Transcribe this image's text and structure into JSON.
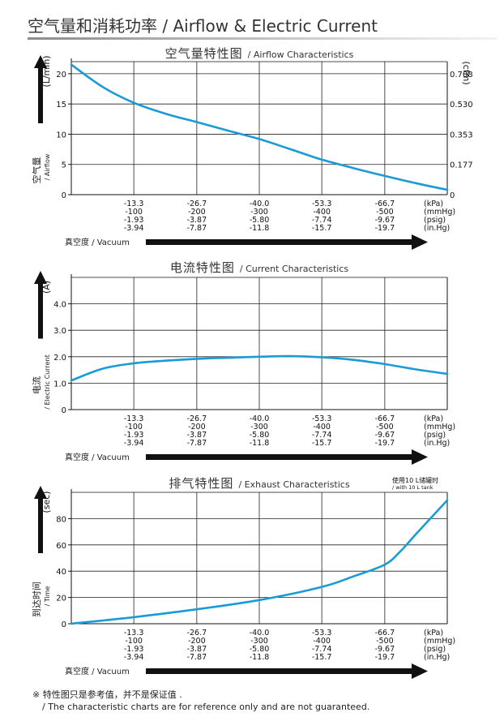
{
  "page": {
    "title": "空气量和消耗功率 / Airflow & Electric Current"
  },
  "notes": [
    "※ 特性图只是参考值，并不是保证值 .",
    "/ The characteristic charts are for reference only and are not guaranteed."
  ],
  "colors": {
    "curve": "#1a9ad7",
    "axis": "#111111",
    "arrow": "#111111"
  },
  "chart_data": [
    {
      "type": "line",
      "title": "空气量特性图",
      "subtitle": "/ Airflow Characteristics",
      "ylabel": "(L/min)",
      "y2label": "(cfm)",
      "side_label_cn": "空气量",
      "side_label_en": "/ Airflow",
      "xlabel_arrow": "真空度 / Vacuum",
      "xlim": [
        0,
        -80
      ],
      "ylim": [
        0,
        22
      ],
      "yticks": [
        0,
        5,
        10,
        15,
        20
      ],
      "y2ticks": [
        {
          "value": 0,
          "label": "0"
        },
        {
          "value": 5,
          "label": "0.177"
        },
        {
          "value": 10,
          "label": "0.353"
        },
        {
          "value": 15,
          "label": "0.530"
        },
        {
          "value": 20,
          "label": "0.708"
        }
      ],
      "x_ticks": [
        {
          "value": -13.3,
          "labels": [
            "-13.3",
            "-100",
            "-1.93",
            "-3.94"
          ]
        },
        {
          "value": -26.7,
          "labels": [
            "-26.7",
            "-200",
            "-3.87",
            "-7.87"
          ]
        },
        {
          "value": -40.0,
          "labels": [
            "-40.0",
            "-300",
            "-5.80",
            "-11.8"
          ]
        },
        {
          "value": -53.3,
          "labels": [
            "-53.3",
            "-400",
            "-7.74",
            "-15.7"
          ]
        },
        {
          "value": -66.7,
          "labels": [
            "-66.7",
            "-500",
            "-9.67",
            "-19.7"
          ]
        }
      ],
      "x_units": [
        "(kPa)",
        "(mmHg)",
        "(psig)",
        "(in.Hg)"
      ],
      "grid": true,
      "series": [
        {
          "x": [
            0,
            -6.7,
            -13.3,
            -20,
            -26.7,
            -33.3,
            -40,
            -46.7,
            -53.3,
            -60,
            -66.7,
            -73.3,
            -80
          ],
          "y": [
            21.5,
            17.8,
            15.2,
            13.4,
            12.0,
            10.6,
            9.2,
            7.5,
            5.8,
            4.4,
            3.1,
            1.9,
            0.8
          ]
        }
      ]
    },
    {
      "type": "line",
      "title": "电流特性图",
      "subtitle": "/ Current Characteristics",
      "ylabel": "(A)",
      "side_label_cn": "电流",
      "side_label_en": "/ Electric Current",
      "xlabel_arrow": "真空度 / Vacuum",
      "xlim": [
        0,
        -80
      ],
      "ylim": [
        0,
        5
      ],
      "yticks": [
        {
          "value": 0,
          "label": "0"
        },
        {
          "value": 1,
          "label": "1.0"
        },
        {
          "value": 2,
          "label": "2.0"
        },
        {
          "value": 3,
          "label": "3.0"
        },
        {
          "value": 4,
          "label": "4.0"
        }
      ],
      "x_ticks": [
        {
          "value": -13.3,
          "labels": [
            "-13.3",
            "-100",
            "-1.93",
            "-3.94"
          ]
        },
        {
          "value": -26.7,
          "labels": [
            "-26.7",
            "-200",
            "-3.87",
            "-7.87"
          ]
        },
        {
          "value": -40.0,
          "labels": [
            "-40.0",
            "-300",
            "-5.80",
            "-11.8"
          ]
        },
        {
          "value": -53.3,
          "labels": [
            "-53.3",
            "-400",
            "-7.74",
            "-15.7"
          ]
        },
        {
          "value": -66.7,
          "labels": [
            "-66.7",
            "-500",
            "-9.67",
            "-19.7"
          ]
        }
      ],
      "x_units": [
        "(kPa)",
        "(mmHg)",
        "(psig)",
        "(in.Hg)"
      ],
      "grid": true,
      "series": [
        {
          "x": [
            0,
            -6.7,
            -13.3,
            -20,
            -26.7,
            -33.3,
            -40,
            -46.7,
            -53.3,
            -60,
            -66.7,
            -73.3,
            -80
          ],
          "y": [
            1.1,
            1.55,
            1.75,
            1.85,
            1.92,
            1.96,
            2.0,
            2.02,
            1.98,
            1.88,
            1.72,
            1.52,
            1.35
          ]
        }
      ]
    },
    {
      "type": "line",
      "title": "排气特性图",
      "subtitle": "/ Exhaust Characteristics",
      "annotation": [
        "使用10 L储罐时",
        "/ with 10 L tank"
      ],
      "ylabel": "(sec)",
      "side_label_cn": "到达时间",
      "side_label_en": "/ Time",
      "xlabel_arrow": "真空度 / Vacuum",
      "xlim": [
        0,
        -80
      ],
      "ylim": [
        0,
        100
      ],
      "yticks": [
        0,
        20,
        40,
        60,
        80
      ],
      "x_ticks": [
        {
          "value": -13.3,
          "labels": [
            "-13.3",
            "-100",
            "-1.93",
            "-3.94"
          ]
        },
        {
          "value": -26.7,
          "labels": [
            "-26.7",
            "-200",
            "-3.87",
            "-7.87"
          ]
        },
        {
          "value": -40.0,
          "labels": [
            "-40.0",
            "-300",
            "-5.80",
            "-11.8"
          ]
        },
        {
          "value": -53.3,
          "labels": [
            "-53.3",
            "-400",
            "-7.74",
            "-15.7"
          ]
        },
        {
          "value": -66.7,
          "labels": [
            "-66.7",
            "-500",
            "-9.67",
            "-19.7"
          ]
        }
      ],
      "x_units": [
        "(kPa)",
        "(mmHg)",
        "(psig)",
        "(in.Hg)"
      ],
      "grid": true,
      "series": [
        {
          "x": [
            0,
            -13.3,
            -26.7,
            -40,
            -53.3,
            -60,
            -66.7,
            -70,
            -73.3,
            -80
          ],
          "y": [
            0,
            5,
            11,
            18,
            28,
            36,
            45,
            55,
            68,
            94
          ]
        }
      ]
    }
  ]
}
